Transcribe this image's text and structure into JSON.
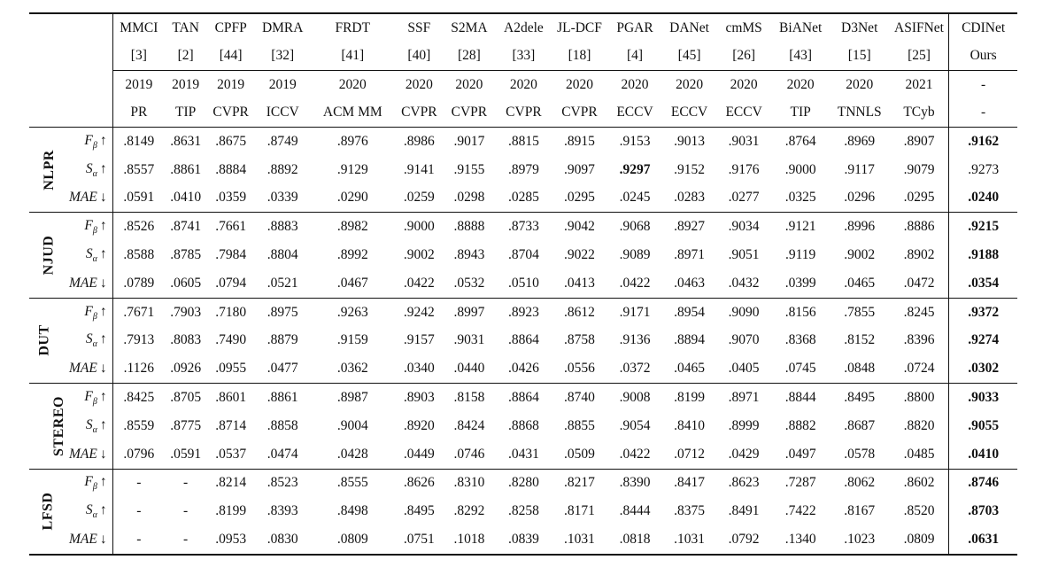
{
  "methods": [
    {
      "name": "MMCI",
      "ref": "[3]",
      "year": "2019",
      "venue": "PR"
    },
    {
      "name": "TAN",
      "ref": "[2]",
      "year": "2019",
      "venue": "TIP"
    },
    {
      "name": "CPFP",
      "ref": "[44]",
      "year": "2019",
      "venue": "CVPR"
    },
    {
      "name": "DMRA",
      "ref": "[32]",
      "year": "2019",
      "venue": "ICCV"
    },
    {
      "name": "FRDT",
      "ref": "[41]",
      "year": "2020",
      "venue": "ACM MM"
    },
    {
      "name": "SSF",
      "ref": "[40]",
      "year": "2020",
      "venue": "CVPR"
    },
    {
      "name": "S2MA",
      "ref": "[28]",
      "year": "2020",
      "venue": "CVPR"
    },
    {
      "name": "A2dele",
      "ref": "[33]",
      "year": "2020",
      "venue": "CVPR"
    },
    {
      "name": "JL-DCF",
      "ref": "[18]",
      "year": "2020",
      "venue": "CVPR"
    },
    {
      "name": "PGAR",
      "ref": "[4]",
      "year": "2020",
      "venue": "ECCV"
    },
    {
      "name": "DANet",
      "ref": "[45]",
      "year": "2020",
      "venue": "ECCV"
    },
    {
      "name": "cmMS",
      "ref": "[26]",
      "year": "2020",
      "venue": "ECCV"
    },
    {
      "name": "BiANet",
      "ref": "[43]",
      "year": "2020",
      "venue": "TIP"
    },
    {
      "name": "D3Net",
      "ref": "[15]",
      "year": "2020",
      "venue": "TNNLS"
    },
    {
      "name": "ASIFNet",
      "ref": "[25]",
      "year": "2021",
      "venue": "TCyb"
    },
    {
      "name": "CDINet",
      "ref": "Ours",
      "year": "-",
      "venue": "-"
    }
  ],
  "metrics": [
    {
      "symbol": "F",
      "sub": "β",
      "arrow": "↑"
    },
    {
      "symbol": "S",
      "sub": "α",
      "arrow": "↑"
    },
    {
      "symbol": "MAE",
      "sub": "",
      "arrow": "↓"
    }
  ],
  "datasets": [
    {
      "name": "NLPR",
      "rows": [
        [
          ".8149",
          ".8631",
          ".8675",
          ".8749",
          ".8976",
          ".8986",
          ".9017",
          ".8815",
          ".8915",
          ".9153",
          ".9013",
          ".9031",
          ".8764",
          ".8969",
          ".8907",
          ".9162"
        ],
        [
          ".8557",
          ".8861",
          ".8884",
          ".8892",
          ".9129",
          ".9141",
          ".9155",
          ".8979",
          ".9097",
          ".9297",
          ".9152",
          ".9176",
          ".9000",
          ".9117",
          ".9079",
          ".9273"
        ],
        [
          ".0591",
          ".0410",
          ".0359",
          ".0339",
          ".0290",
          ".0259",
          ".0298",
          ".0285",
          ".0295",
          ".0245",
          ".0283",
          ".0277",
          ".0325",
          ".0296",
          ".0295",
          ".0240"
        ]
      ],
      "bold": [
        [
          15
        ],
        [
          9
        ],
        [
          15
        ]
      ]
    },
    {
      "name": "NJUD",
      "rows": [
        [
          ".8526",
          ".8741",
          ".7661",
          ".8883",
          ".8982",
          ".9000",
          ".8888",
          ".8733",
          ".9042",
          ".9068",
          ".8927",
          ".9034",
          ".9121",
          ".8996",
          ".8886",
          ".9215"
        ],
        [
          ".8588",
          ".8785",
          ".7984",
          ".8804",
          ".8992",
          ".9002",
          ".8943",
          ".8704",
          ".9022",
          ".9089",
          ".8971",
          ".9051",
          ".9119",
          ".9002",
          ".8902",
          ".9188"
        ],
        [
          ".0789",
          ".0605",
          ".0794",
          ".0521",
          ".0467",
          ".0422",
          ".0532",
          ".0510",
          ".0413",
          ".0422",
          ".0463",
          ".0432",
          ".0399",
          ".0465",
          ".0472",
          ".0354"
        ]
      ],
      "bold": [
        [
          15
        ],
        [
          15
        ],
        [
          15
        ]
      ]
    },
    {
      "name": "DUT",
      "rows": [
        [
          ".7671",
          ".7903",
          ".7180",
          ".8975",
          ".9263",
          ".9242",
          ".8997",
          ".8923",
          ".8612",
          ".9171",
          ".8954",
          ".9090",
          ".8156",
          ".7855",
          ".8245",
          ".9372"
        ],
        [
          ".7913",
          ".8083",
          ".7490",
          ".8879",
          ".9159",
          ".9157",
          ".9031",
          ".8864",
          ".8758",
          ".9136",
          ".8894",
          ".9070",
          ".8368",
          ".8152",
          ".8396",
          ".9274"
        ],
        [
          ".1126",
          ".0926",
          ".0955",
          ".0477",
          ".0362",
          ".0340",
          ".0440",
          ".0426",
          ".0556",
          ".0372",
          ".0465",
          ".0405",
          ".0745",
          ".0848",
          ".0724",
          ".0302"
        ]
      ],
      "bold": [
        [
          15
        ],
        [
          15
        ],
        [
          15
        ]
      ]
    },
    {
      "name": "STEREO",
      "rows": [
        [
          ".8425",
          ".8705",
          ".8601",
          ".8861",
          ".8987",
          ".8903",
          ".8158",
          ".8864",
          ".8740",
          ".9008",
          ".8199",
          ".8971",
          ".8844",
          ".8495",
          ".8800",
          ".9033"
        ],
        [
          ".8559",
          ".8775",
          ".8714",
          ".8858",
          ".9004",
          ".8920",
          ".8424",
          ".8868",
          ".8855",
          ".9054",
          ".8410",
          ".8999",
          ".8882",
          ".8687",
          ".8820",
          ".9055"
        ],
        [
          ".0796",
          ".0591",
          ".0537",
          ".0474",
          ".0428",
          ".0449",
          ".0746",
          ".0431",
          ".0509",
          ".0422",
          ".0712",
          ".0429",
          ".0497",
          ".0578",
          ".0485",
          ".0410"
        ]
      ],
      "bold": [
        [
          15
        ],
        [
          15
        ],
        [
          15
        ]
      ]
    },
    {
      "name": "LFSD",
      "rows": [
        [
          "-",
          "-",
          ".8214",
          ".8523",
          ".8555",
          ".8626",
          ".8310",
          ".8280",
          ".8217",
          ".8390",
          ".8417",
          ".8623",
          ".7287",
          ".8062",
          ".8602",
          ".8746"
        ],
        [
          "-",
          "-",
          ".8199",
          ".8393",
          ".8498",
          ".8495",
          ".8292",
          ".8258",
          ".8171",
          ".8444",
          ".8375",
          ".8491",
          ".7422",
          ".8167",
          ".8520",
          ".8703"
        ],
        [
          "-",
          "-",
          ".0953",
          ".0830",
          ".0809",
          ".0751",
          ".1018",
          ".0839",
          ".1031",
          ".0818",
          ".1031",
          ".0792",
          ".1340",
          ".1023",
          ".0809",
          ".0631"
        ]
      ],
      "bold": [
        [
          15
        ],
        [
          15
        ],
        [
          15
        ]
      ]
    }
  ]
}
